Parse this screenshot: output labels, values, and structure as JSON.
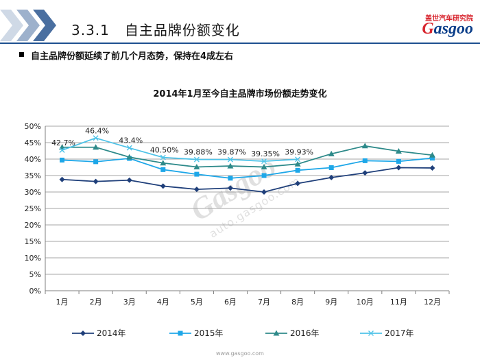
{
  "header": {
    "section_number": "3.3.1",
    "section_title": "自主品牌份额变化",
    "logo_cn": "盖世汽车研究院",
    "logo_en_g": "G",
    "logo_en_rest": "asgoo"
  },
  "bullet": "自主品牌份额延续了前几个月态势，保持在4成左右",
  "watermark": {
    "main": "Gasgoo",
    "url": "auto.gasgoo.com"
  },
  "footer": {
    "url": "www.gasgoo.com"
  },
  "colors": {
    "accent": "#1d4f8f",
    "grid": "#a6a6a6",
    "axis": "#7f7f7f"
  },
  "chart_data": {
    "type": "line",
    "title": "2014年1月至今自主品牌市场份额走势变化",
    "xlabel": "",
    "ylabel": "",
    "categories": [
      "1月",
      "2月",
      "3月",
      "4月",
      "5月",
      "6月",
      "7月",
      "8月",
      "9月",
      "10月",
      "11月",
      "12月"
    ],
    "ylim": [
      0,
      50
    ],
    "y_ticks": [
      "0%",
      "5%",
      "10%",
      "15%",
      "20%",
      "25%",
      "30%",
      "35%",
      "40%",
      "45%",
      "50%"
    ],
    "grid": true,
    "legend_position": "bottom",
    "series": [
      {
        "name": "2014年",
        "color": "#1f3f7a",
        "marker": "diamond",
        "values": [
          33.8,
          33.2,
          33.6,
          31.8,
          30.8,
          31.2,
          30.0,
          32.6,
          34.4,
          35.8,
          37.4,
          37.3
        ]
      },
      {
        "name": "2015年",
        "color": "#1ea7e8",
        "marker": "square",
        "values": [
          39.7,
          39.2,
          40.2,
          36.8,
          35.4,
          34.2,
          35.0,
          36.6,
          37.4,
          39.5,
          39.3,
          40.3
        ]
      },
      {
        "name": "2016年",
        "color": "#2e8a8a",
        "marker": "triangle",
        "values": [
          43.6,
          43.6,
          40.6,
          38.8,
          37.6,
          37.9,
          37.6,
          38.5,
          41.6,
          44.0,
          42.4,
          41.2
        ]
      },
      {
        "name": "2017年",
        "color": "#4fc3e8",
        "marker": "x",
        "values": [
          42.7,
          46.4,
          43.4,
          40.5,
          39.88,
          39.87,
          39.35,
          39.93,
          null,
          null,
          null,
          null
        ],
        "data_labels": [
          "42.7%",
          "46.4%",
          "43.4%",
          "40.50%",
          "39.88%",
          "39.87%",
          "39.35%",
          "39.93%"
        ]
      }
    ]
  }
}
